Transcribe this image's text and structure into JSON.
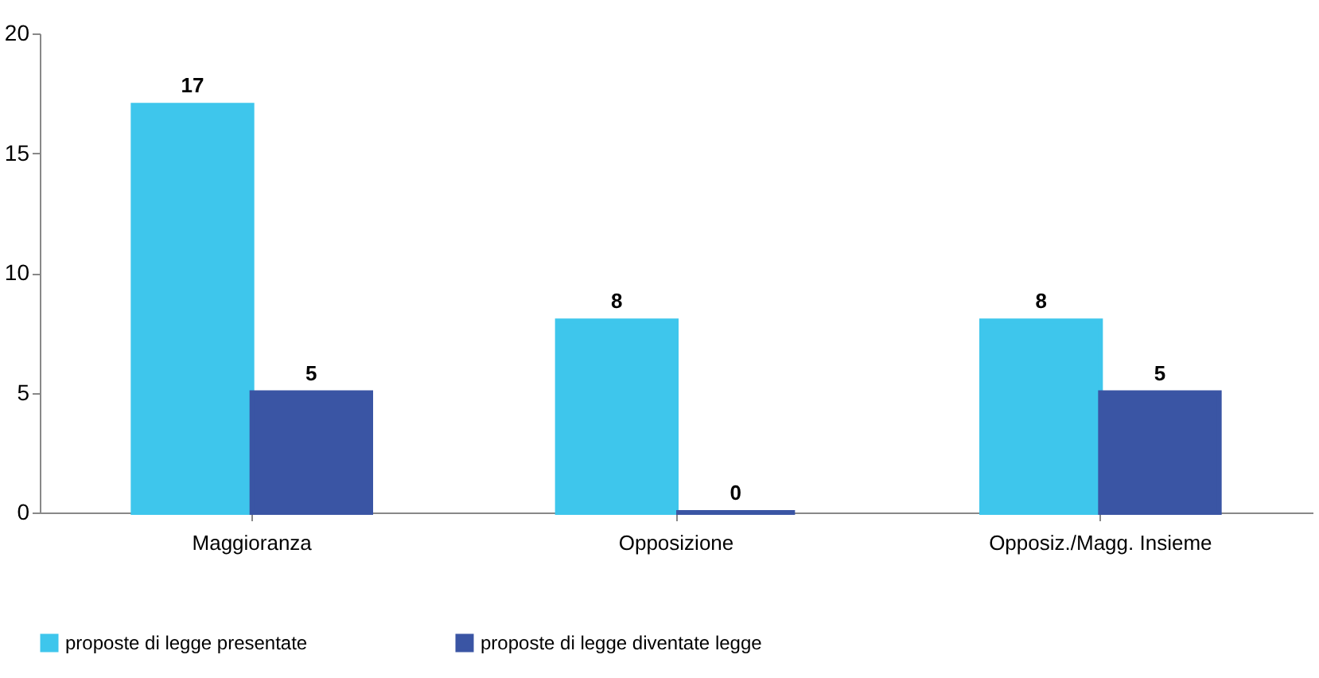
{
  "chart_data": {
    "type": "bar",
    "categories": [
      "Maggioranza",
      "Opposizione",
      "Opposiz./Magg. Insieme"
    ],
    "series": [
      {
        "name": "proposte di legge presentate",
        "color": "#3ec6ec",
        "values": [
          17,
          8,
          8
        ]
      },
      {
        "name": "proposte di legge diventate legge",
        "color": "#3a55a4",
        "values": [
          5,
          0,
          5
        ]
      }
    ],
    "ylim": [
      0,
      20
    ],
    "yticks": [
      0,
      5,
      10,
      15,
      20
    ],
    "grid": false,
    "legend": "bottom",
    "data_labels": true
  }
}
